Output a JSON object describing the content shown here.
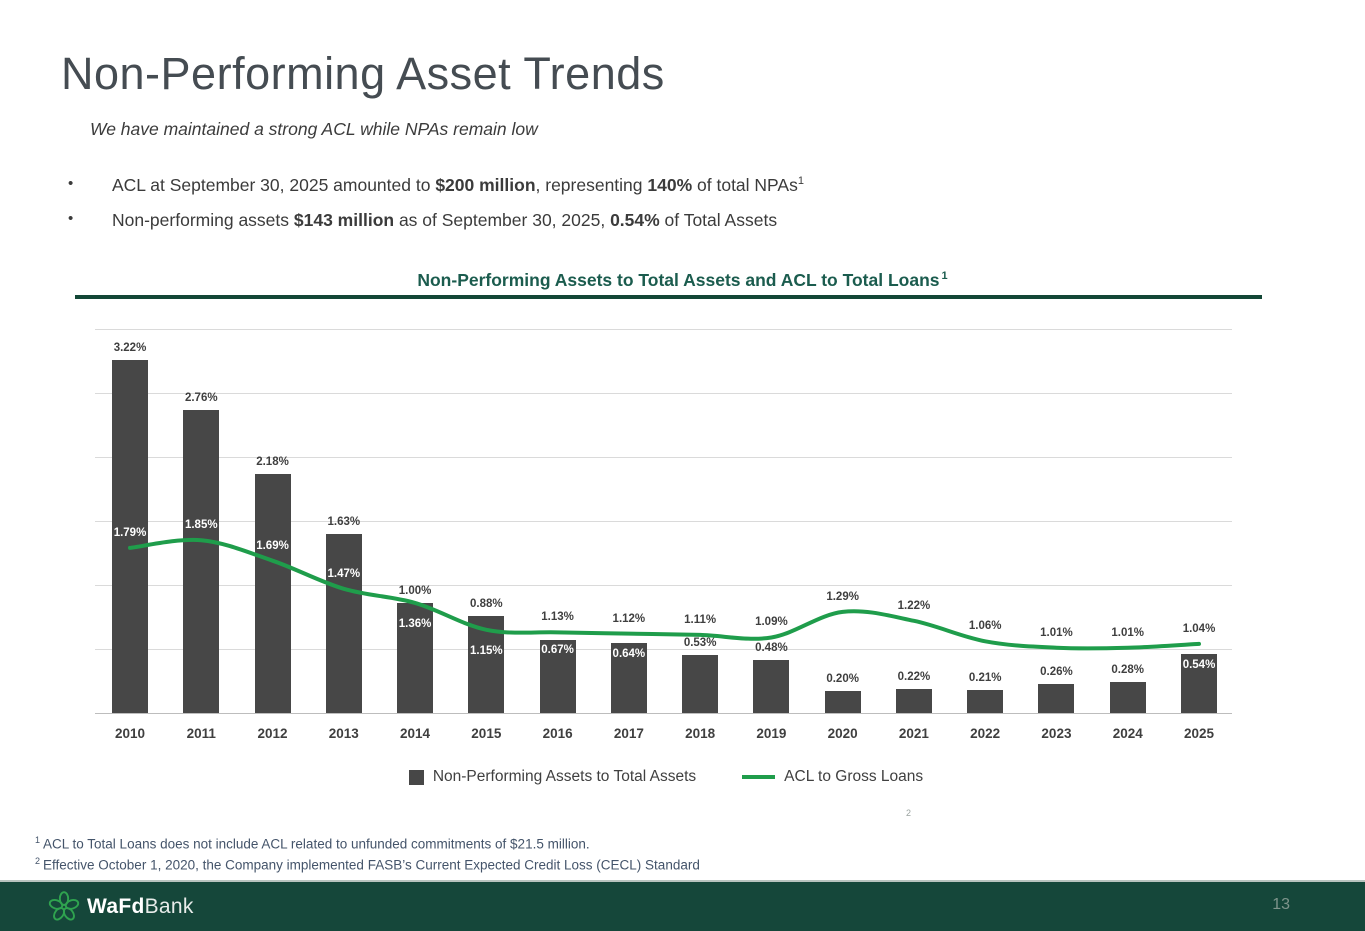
{
  "slide": {
    "title": "Non-Performing Asset Trends",
    "subtitle": "We have maintained a strong ACL while NPAs remain low",
    "bullet_char": "•",
    "bullets": [
      {
        "segments": [
          {
            "text": "ACL at September 30, 2025 amounted to ",
            "bold": false
          },
          {
            "text": "$200 million",
            "bold": true
          },
          {
            "text": ", representing ",
            "bold": false
          },
          {
            "text": "140%",
            "bold": true
          },
          {
            "text": " of total NPAs",
            "bold": false
          },
          {
            "text": "1",
            "bold": false,
            "sup": true
          }
        ]
      },
      {
        "segments": [
          {
            "text": "Non-performing assets ",
            "bold": false
          },
          {
            "text": "$143 million",
            "bold": true
          },
          {
            "text": " as of September 30, 2025, ",
            "bold": false
          },
          {
            "text": "0.54%",
            "bold": true
          },
          {
            "text": " of Total Assets",
            "bold": false
          }
        ]
      }
    ],
    "chart_footnote_marker": "2",
    "footnotes": [
      {
        "marker": "1",
        "text": "ACL to Total Loans does not include ACL related to unfunded commitments of $21.5 million."
      },
      {
        "marker": "2",
        "text": "Effective October 1, 2020, the Company implemented FASB’s Current Expected Credit Loss (CECL) Standard"
      }
    ]
  },
  "chart_data": {
    "type": "bar",
    "title": "Non-Performing Assets to Total Assets and ACL to Total Loans",
    "title_footnote_marker": "1",
    "categories": [
      "2010",
      "2011",
      "2012",
      "2013",
      "2014",
      "2015",
      "2016",
      "2017",
      "2018",
      "2019",
      "2020",
      "2021",
      "2022",
      "2023",
      "2024",
      "2025"
    ],
    "series": [
      {
        "name": "Non-Performing Assets to Total Assets",
        "type": "bar",
        "color": "#474747",
        "values": [
          3.22,
          2.76,
          2.18,
          1.63,
          1.0,
          0.88,
          0.67,
          0.64,
          0.53,
          0.48,
          0.2,
          0.22,
          0.21,
          0.26,
          0.28,
          0.54
        ],
        "labels": [
          "3.22%",
          "2.76%",
          "2.18%",
          "1.63%",
          "1.00%",
          "0.88%",
          "0.67%",
          "0.64%",
          "0.53%",
          "0.48%",
          "0.20%",
          "0.22%",
          "0.21%",
          "0.26%",
          "0.28%",
          "0.54%"
        ],
        "label_styles": [
          "above",
          "above",
          "above",
          "above",
          "above",
          "above",
          "inside",
          "inside",
          "above",
          "above",
          "above",
          "above",
          "above",
          "above",
          "above",
          "inside"
        ]
      },
      {
        "name": "ACL to Gross Loans",
        "type": "line",
        "color": "#1F9D4B",
        "values": [
          1.79,
          1.85,
          1.69,
          1.47,
          1.36,
          1.15,
          1.13,
          1.12,
          1.11,
          1.09,
          1.29,
          1.22,
          1.06,
          1.01,
          1.01,
          1.04
        ],
        "labels": [
          "1.79%",
          "1.85%",
          "1.69%",
          "1.47%",
          "1.36%",
          "1.15%",
          "1.13%",
          "1.12%",
          "1.11%",
          "1.09%",
          "1.29%",
          "1.22%",
          "1.06%",
          "1.01%",
          "1.01%",
          "1.04%"
        ],
        "label_styles": [
          "white-above",
          "white-above",
          "white-above",
          "white-above",
          "white-below",
          "white-below",
          "gray-above",
          "gray-above",
          "gray-above",
          "gray-above",
          "gray-above",
          "gray-above",
          "gray-above",
          "gray-above",
          "gray-above",
          "gray-above"
        ]
      }
    ],
    "primary_ylim": [
      0,
      3.5
    ],
    "secondary_ylim": [
      0.5,
      3.5
    ],
    "gridline_count": 7,
    "grid": true,
    "legend_position": "bottom"
  },
  "legend": {
    "bar_label": "Non-Performing Assets to Total Assets",
    "line_label": "ACL to Gross Loans"
  },
  "footer": {
    "brand_bold": "WaFd",
    "brand_light": "Bank",
    "page_number": "13"
  },
  "colors": {
    "bar": "#474747",
    "line_green": "#1F9D4B",
    "chart_title_green": "#1B5C4E",
    "rule_dark_green": "#134736",
    "footer_dark_green": "#15473A",
    "logo_green": "#2FA34F",
    "footnote_blue_gray": "#44546A",
    "text_gray": "#3f3f3f",
    "gridline_gray": "#DADADA"
  }
}
